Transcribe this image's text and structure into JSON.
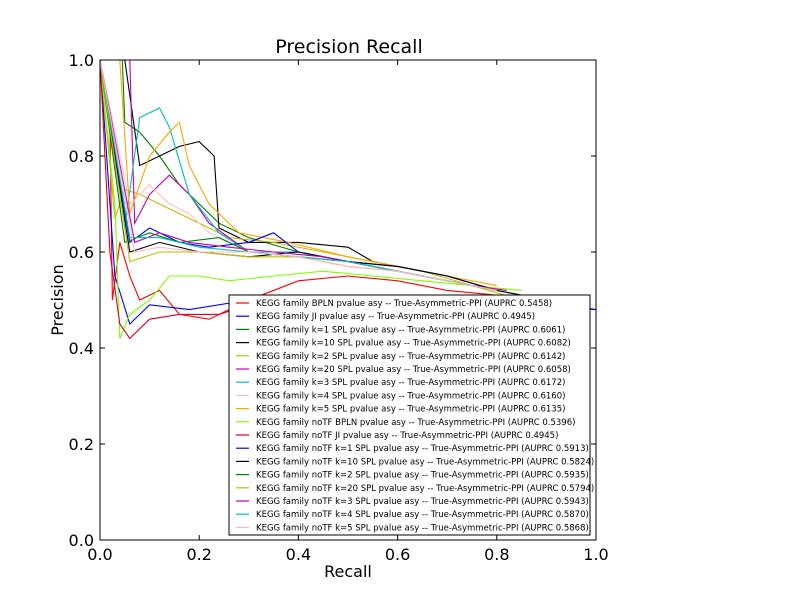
{
  "chart_data": {
    "type": "line",
    "title": "Precision Recall",
    "xlabel": "Recall",
    "ylabel": "Precision",
    "xlim": [
      0.0,
      1.0
    ],
    "ylim": [
      0.0,
      1.0
    ],
    "xticks": [
      "0.0",
      "0.2",
      "0.4",
      "0.6",
      "0.8",
      "1.0"
    ],
    "yticks": [
      "0.0",
      "0.2",
      "0.4",
      "0.6",
      "0.8",
      "1.0"
    ],
    "grid": false,
    "legend_position": "lower-right",
    "series": [
      {
        "name": "KEGG family BPLN pvalue asy -- True-Asymmetric-PPI (AUPRC 0.5458)",
        "color": "#ff0000",
        "points": [
          [
            0.0,
            1.0
          ],
          [
            0.02,
            0.87
          ],
          [
            0.025,
            0.5
          ],
          [
            0.04,
            0.62
          ],
          [
            0.06,
            0.55
          ],
          [
            0.08,
            0.5
          ],
          [
            0.12,
            0.52
          ],
          [
            0.16,
            0.47
          ],
          [
            0.22,
            0.46
          ],
          [
            0.3,
            0.5
          ],
          [
            0.4,
            0.54
          ],
          [
            0.5,
            0.55
          ],
          [
            0.6,
            0.54
          ],
          [
            0.7,
            0.52
          ],
          [
            0.8,
            0.51
          ],
          [
            0.9,
            0.5
          ],
          [
            1.0,
            0.48
          ]
        ]
      },
      {
        "name": "KEGG family JI pvalue asy -- True-Asymmetric-PPI (AUPRC 0.4945)",
        "color": "#0000ff",
        "points": [
          [
            0.0,
            1.0
          ],
          [
            0.03,
            0.55
          ],
          [
            0.06,
            0.45
          ],
          [
            0.1,
            0.49
          ],
          [
            0.18,
            0.48
          ],
          [
            0.3,
            0.5
          ],
          [
            0.45,
            0.5
          ],
          [
            0.6,
            0.5
          ],
          [
            0.75,
            0.49
          ],
          [
            0.85,
            0.49
          ],
          [
            1.0,
            0.48
          ]
        ]
      },
      {
        "name": "KEGG family k=1 SPL pvalue asy -- True-Asymmetric-PPI (AUPRC 0.6061)",
        "color": "#008000",
        "points": [
          [
            0.0,
            1.0
          ],
          [
            0.045,
            1.0
          ],
          [
            0.05,
            0.87
          ],
          [
            0.08,
            0.85
          ],
          [
            0.12,
            0.8
          ],
          [
            0.16,
            0.74
          ],
          [
            0.2,
            0.7
          ],
          [
            0.24,
            0.66
          ],
          [
            0.3,
            0.63
          ],
          [
            0.4,
            0.6
          ],
          [
            0.5,
            0.58
          ],
          [
            0.6,
            0.56
          ],
          [
            0.7,
            0.54
          ],
          [
            0.8,
            0.52
          ],
          [
            0.9,
            0.5
          ]
        ]
      },
      {
        "name": "KEGG family k=10 SPL pvalue asy -- True-Asymmetric-PPI (AUPRC 0.6082)",
        "color": "#000000",
        "points": [
          [
            0.0,
            1.0
          ],
          [
            0.05,
            1.0
          ],
          [
            0.08,
            0.78
          ],
          [
            0.12,
            0.8
          ],
          [
            0.16,
            0.82
          ],
          [
            0.2,
            0.83
          ],
          [
            0.23,
            0.8
          ],
          [
            0.24,
            0.65
          ],
          [
            0.3,
            0.62
          ],
          [
            0.4,
            0.62
          ],
          [
            0.5,
            0.61
          ],
          [
            0.55,
            0.58
          ],
          [
            0.6,
            0.57
          ],
          [
            0.7,
            0.55
          ],
          [
            0.8,
            0.52
          ],
          [
            0.9,
            0.5
          ]
        ]
      },
      {
        "name": "KEGG family k=2 SPL pvalue asy -- True-Asymmetric-PPI (AUPRC 0.6142)",
        "color": "#bfbf00",
        "points": [
          [
            0.0,
            1.0
          ],
          [
            0.03,
            0.67
          ],
          [
            0.05,
            0.73
          ],
          [
            0.08,
            0.72
          ],
          [
            0.12,
            0.7
          ],
          [
            0.16,
            0.68
          ],
          [
            0.2,
            0.66
          ],
          [
            0.26,
            0.63
          ],
          [
            0.35,
            0.62
          ],
          [
            0.45,
            0.6
          ],
          [
            0.55,
            0.58
          ],
          [
            0.65,
            0.56
          ],
          [
            0.75,
            0.53
          ],
          [
            0.85,
            0.5
          ]
        ]
      },
      {
        "name": "KEGG family k=20 SPL pvalue asy -- True-Asymmetric-PPI (AUPRC 0.6058)",
        "color": "#bf00bf",
        "points": [
          [
            0.0,
            1.0
          ],
          [
            0.06,
            1.0
          ],
          [
            0.07,
            0.66
          ],
          [
            0.1,
            0.72
          ],
          [
            0.14,
            0.76
          ],
          [
            0.18,
            0.72
          ],
          [
            0.22,
            0.66
          ],
          [
            0.3,
            0.6
          ],
          [
            0.4,
            0.6
          ],
          [
            0.5,
            0.58
          ],
          [
            0.6,
            0.56
          ],
          [
            0.7,
            0.54
          ],
          [
            0.8,
            0.52
          ]
        ]
      },
      {
        "name": "KEGG family k=3 SPL pvalue asy -- True-Asymmetric-PPI (AUPRC 0.6172)",
        "color": "#00bfbf",
        "points": [
          [
            0.0,
            1.0
          ],
          [
            0.05,
            0.65
          ],
          [
            0.08,
            0.88
          ],
          [
            0.12,
            0.9
          ],
          [
            0.14,
            0.86
          ],
          [
            0.18,
            0.72
          ],
          [
            0.24,
            0.64
          ],
          [
            0.3,
            0.6
          ],
          [
            0.4,
            0.6
          ],
          [
            0.5,
            0.58
          ],
          [
            0.6,
            0.56
          ],
          [
            0.7,
            0.54
          ],
          [
            0.8,
            0.52
          ]
        ]
      },
      {
        "name": "KEGG family k=4 SPL pvalue asy -- True-Asymmetric-PPI (AUPRC 0.6160)",
        "color": "#ffc0cb",
        "points": [
          [
            0.0,
            1.0
          ],
          [
            0.06,
            0.7
          ],
          [
            0.1,
            0.74
          ],
          [
            0.14,
            0.7
          ],
          [
            0.18,
            0.68
          ],
          [
            0.22,
            0.64
          ],
          [
            0.3,
            0.6
          ],
          [
            0.4,
            0.59
          ],
          [
            0.5,
            0.58
          ],
          [
            0.6,
            0.56
          ],
          [
            0.7,
            0.54
          ],
          [
            0.8,
            0.52
          ]
        ]
      },
      {
        "name": "KEGG family k=5 SPL pvalue asy -- True-Asymmetric-PPI (AUPRC 0.6135)",
        "color": "#ffa500",
        "points": [
          [
            0.0,
            1.0
          ],
          [
            0.04,
            1.0
          ],
          [
            0.06,
            0.68
          ],
          [
            0.1,
            0.8
          ],
          [
            0.14,
            0.85
          ],
          [
            0.16,
            0.87
          ],
          [
            0.18,
            0.78
          ],
          [
            0.22,
            0.7
          ],
          [
            0.28,
            0.64
          ],
          [
            0.38,
            0.62
          ],
          [
            0.5,
            0.59
          ],
          [
            0.6,
            0.57
          ],
          [
            0.7,
            0.55
          ],
          [
            0.8,
            0.53
          ]
        ]
      },
      {
        "name": "KEGG family noTF BPLN pvalue asy -- True-Asymmetric-PPI (AUPRC 0.5396)",
        "color": "#7fff00",
        "points": [
          [
            0.0,
            1.0
          ],
          [
            0.03,
            0.7
          ],
          [
            0.04,
            0.42
          ],
          [
            0.06,
            0.47
          ],
          [
            0.1,
            0.5
          ],
          [
            0.14,
            0.55
          ],
          [
            0.2,
            0.55
          ],
          [
            0.26,
            0.54
          ],
          [
            0.35,
            0.55
          ],
          [
            0.45,
            0.56
          ],
          [
            0.55,
            0.55
          ],
          [
            0.65,
            0.54
          ],
          [
            0.75,
            0.53
          ],
          [
            0.85,
            0.52
          ]
        ]
      },
      {
        "name": "KEGG family noTF JI pvalue asy -- True-Asymmetric-PPI (AUPRC 0.4945)",
        "color": "#dd0022",
        "points": [
          [
            0.0,
            1.0
          ],
          [
            0.02,
            0.6
          ],
          [
            0.04,
            0.45
          ],
          [
            0.06,
            0.42
          ],
          [
            0.1,
            0.46
          ],
          [
            0.16,
            0.47
          ],
          [
            0.24,
            0.47
          ],
          [
            0.3,
            0.49
          ],
          [
            0.45,
            0.5
          ],
          [
            0.6,
            0.5
          ],
          [
            0.75,
            0.49
          ],
          [
            0.9,
            0.49
          ]
        ]
      },
      {
        "name": "KEGG family noTF k=1 SPL pvalue asy -- True-Asymmetric-PPI (AUPRC 0.5913)",
        "color": "#0000ff",
        "points": [
          [
            0.0,
            1.0
          ],
          [
            0.06,
            0.62
          ],
          [
            0.1,
            0.65
          ],
          [
            0.16,
            0.62
          ],
          [
            0.22,
            0.61
          ],
          [
            0.3,
            0.62
          ],
          [
            0.35,
            0.64
          ],
          [
            0.4,
            0.6
          ],
          [
            0.5,
            0.58
          ],
          [
            0.6,
            0.57
          ],
          [
            0.7,
            0.55
          ],
          [
            0.8,
            0.52
          ]
        ]
      },
      {
        "name": "KEGG family noTF k=10 SPL pvalue asy -- True-Asymmetric-PPI (AUPRC 0.5824)",
        "color": "#000000",
        "points": [
          [
            0.0,
            1.0
          ],
          [
            0.06,
            0.6
          ],
          [
            0.12,
            0.62
          ],
          [
            0.2,
            0.6
          ],
          [
            0.3,
            0.59
          ],
          [
            0.4,
            0.6
          ],
          [
            0.5,
            0.58
          ],
          [
            0.6,
            0.57
          ],
          [
            0.7,
            0.55
          ],
          [
            0.8,
            0.52
          ]
        ]
      },
      {
        "name": "KEGG family noTF k=2 SPL pvalue asy -- True-Asymmetric-PPI (AUPRC 0.5935)",
        "color": "#008000",
        "points": [
          [
            0.0,
            1.0
          ],
          [
            0.05,
            0.62
          ],
          [
            0.1,
            0.64
          ],
          [
            0.16,
            0.62
          ],
          [
            0.24,
            0.63
          ],
          [
            0.3,
            0.6
          ],
          [
            0.4,
            0.59
          ],
          [
            0.5,
            0.58
          ],
          [
            0.6,
            0.56
          ],
          [
            0.7,
            0.54
          ],
          [
            0.8,
            0.52
          ]
        ]
      },
      {
        "name": "KEGG family noTF k=20 SPL pvalue asy -- True-Asymmetric-PPI (AUPRC 0.5794)",
        "color": "#bfbf00",
        "points": [
          [
            0.0,
            1.0
          ],
          [
            0.06,
            0.58
          ],
          [
            0.12,
            0.6
          ],
          [
            0.2,
            0.6
          ],
          [
            0.3,
            0.59
          ],
          [
            0.4,
            0.59
          ],
          [
            0.5,
            0.57
          ],
          [
            0.6,
            0.56
          ],
          [
            0.7,
            0.54
          ],
          [
            0.8,
            0.52
          ]
        ]
      },
      {
        "name": "KEGG family noTF k=3 SPL pvalue asy -- True-Asymmetric-PPI (AUPRC 0.5943)",
        "color": "#bf00bf",
        "points": [
          [
            0.0,
            1.0
          ],
          [
            0.07,
            0.62
          ],
          [
            0.12,
            0.64
          ],
          [
            0.18,
            0.62
          ],
          [
            0.26,
            0.61
          ],
          [
            0.35,
            0.6
          ],
          [
            0.45,
            0.59
          ],
          [
            0.55,
            0.57
          ],
          [
            0.65,
            0.55
          ],
          [
            0.75,
            0.53
          ],
          [
            0.82,
            0.52
          ]
        ]
      },
      {
        "name": "KEGG family noTF k=4 SPL pvalue asy -- True-Asymmetric-PPI (AUPRC 0.5870)",
        "color": "#00bfbf",
        "points": [
          [
            0.0,
            1.0
          ],
          [
            0.06,
            0.63
          ],
          [
            0.12,
            0.63
          ],
          [
            0.2,
            0.61
          ],
          [
            0.3,
            0.6
          ],
          [
            0.4,
            0.59
          ],
          [
            0.5,
            0.58
          ],
          [
            0.6,
            0.56
          ],
          [
            0.7,
            0.54
          ],
          [
            0.8,
            0.52
          ]
        ]
      },
      {
        "name": "KEGG family noTF k=5 SPL pvalue asy -- True-Asymmetric-PPI (AUPRC 0.5868)",
        "color": "#ffb6c1",
        "points": [
          [
            0.0,
            1.0
          ],
          [
            0.07,
            0.6
          ],
          [
            0.12,
            0.61
          ],
          [
            0.2,
            0.6
          ],
          [
            0.3,
            0.6
          ],
          [
            0.4,
            0.59
          ],
          [
            0.5,
            0.57
          ],
          [
            0.6,
            0.56
          ],
          [
            0.7,
            0.54
          ],
          [
            0.8,
            0.52
          ]
        ]
      }
    ]
  }
}
